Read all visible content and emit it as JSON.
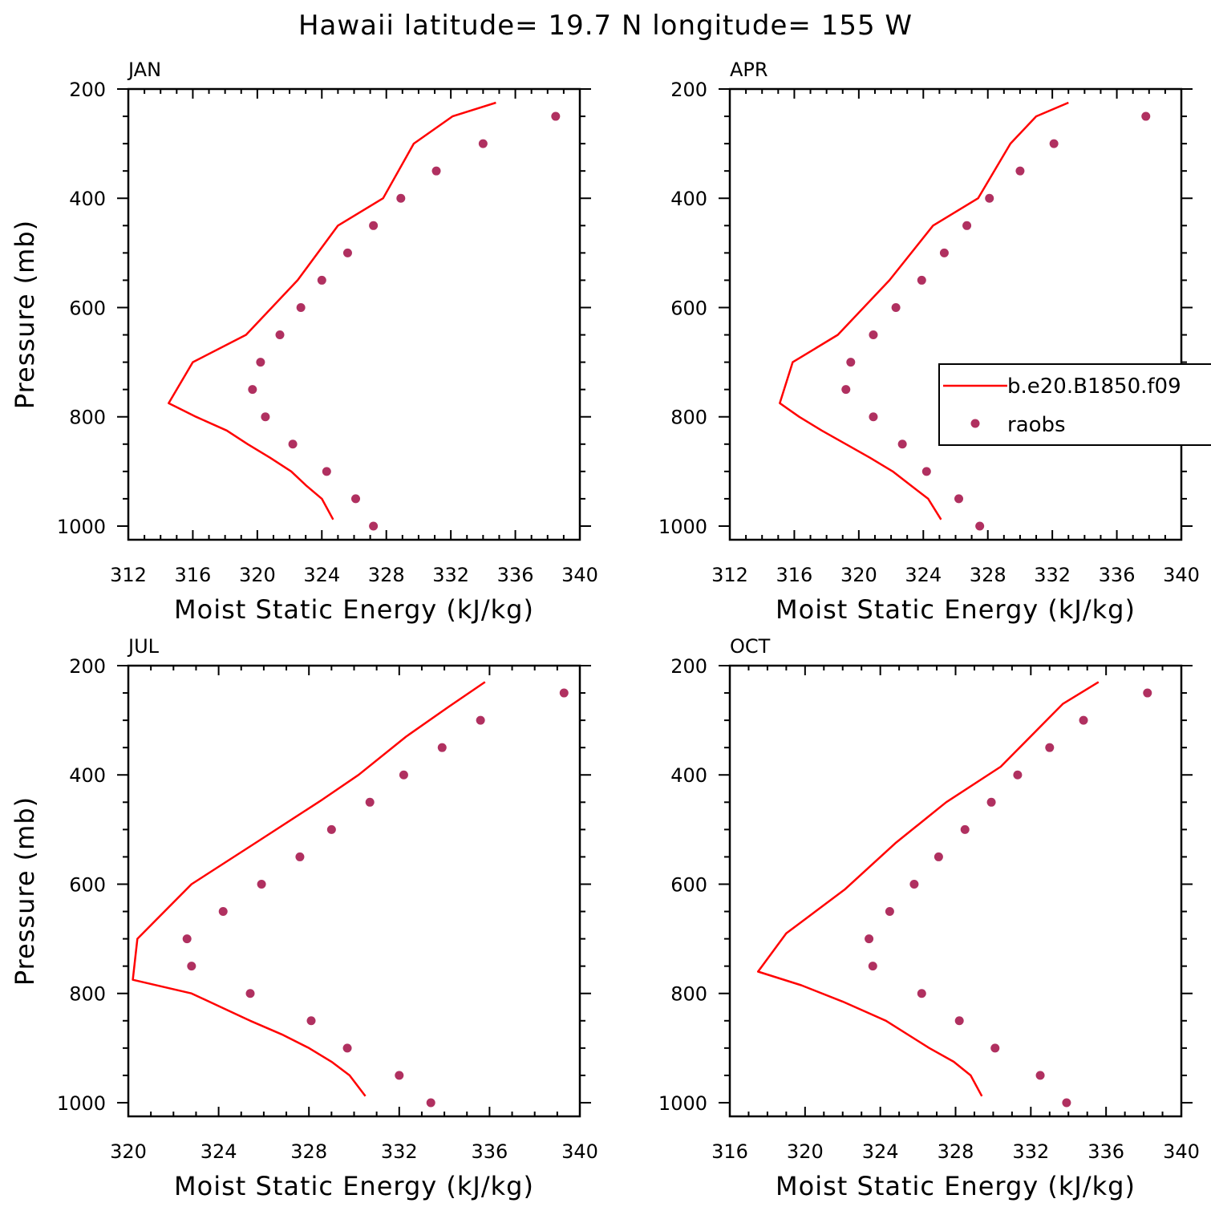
{
  "title": "Hawaii  latitude= 19.7 N longitude= 155 W",
  "colors": {
    "model_line": "#ff0000",
    "raobs_dots": "#b03060"
  },
  "legend": {
    "model_label": "b.e20.B1850.f09",
    "obs_label": "raobs"
  },
  "chart_data": [
    {
      "type": "line",
      "panel_label": "JAN",
      "xlabel": "Moist Static Energy (kJ/kg)",
      "ylabel": "Pressure (mb)",
      "xlim": [
        312,
        340
      ],
      "ylim": [
        1000,
        200
      ],
      "x_ticks": [
        "312",
        "316",
        "320",
        "324",
        "328",
        "332",
        "336",
        "340"
      ],
      "y_ticks": [
        "200",
        "400",
        "600",
        "800",
        "1000"
      ],
      "series": [
        {
          "name": "b.e20.B1850.f09",
          "style": "line",
          "x": [
            324.7,
            324.0,
            323.0,
            322.1,
            320.8,
            319.4,
            318.1,
            316.2,
            314.5,
            316.0,
            319.3,
            322.5,
            325.0,
            327.8,
            329.7,
            332.1,
            334.8
          ],
          "y": [
            988,
            950,
            925,
            900,
            875,
            850,
            825,
            800,
            775,
            700,
            650,
            550,
            450,
            400,
            300,
            250,
            225
          ]
        },
        {
          "name": "raobs",
          "style": "dots",
          "x": [
            327.2,
            326.1,
            324.3,
            322.2,
            320.5,
            319.7,
            320.2,
            321.4,
            322.7,
            324.0,
            325.6,
            327.2,
            328.9,
            331.1,
            334.0,
            338.5
          ],
          "y": [
            1000,
            950,
            900,
            850,
            800,
            750,
            700,
            650,
            600,
            550,
            500,
            450,
            400,
            350,
            300,
            250
          ]
        }
      ]
    },
    {
      "type": "line",
      "panel_label": "APR",
      "xlabel": "Moist Static Energy (kJ/kg)",
      "ylabel": "",
      "xlim": [
        312,
        340
      ],
      "ylim": [
        1000,
        200
      ],
      "x_ticks": [
        "312",
        "316",
        "320",
        "324",
        "328",
        "332",
        "336",
        "340"
      ],
      "y_ticks": [
        "200",
        "400",
        "600",
        "800",
        "1000"
      ],
      "series": [
        {
          "name": "b.e20.B1850.f09",
          "style": "line",
          "x": [
            325.1,
            324.3,
            323.2,
            322.1,
            320.7,
            319.2,
            317.7,
            316.3,
            315.1,
            315.9,
            318.7,
            321.9,
            324.6,
            327.4,
            329.4,
            331.0,
            333.0
          ],
          "y": [
            988,
            950,
            925,
            900,
            875,
            850,
            825,
            800,
            775,
            700,
            650,
            550,
            450,
            400,
            300,
            250,
            225
          ]
        },
        {
          "name": "raobs",
          "style": "dots",
          "x": [
            327.5,
            326.2,
            324.2,
            322.7,
            320.9,
            319.2,
            319.5,
            320.9,
            322.3,
            323.9,
            325.3,
            326.7,
            328.1,
            330.0,
            332.1,
            337.8
          ],
          "y": [
            1000,
            950,
            900,
            850,
            800,
            750,
            700,
            650,
            600,
            550,
            500,
            450,
            400,
            350,
            300,
            250
          ]
        }
      ]
    },
    {
      "type": "line",
      "panel_label": "JUL",
      "xlabel": "Moist Static Energy (kJ/kg)",
      "ylabel": "Pressure (mb)",
      "xlim": [
        320,
        340
      ],
      "ylim": [
        1000,
        200
      ],
      "x_ticks": [
        "320",
        "324",
        "328",
        "332",
        "336",
        "340"
      ],
      "y_ticks": [
        "200",
        "400",
        "600",
        "800",
        "1000"
      ],
      "series": [
        {
          "name": "b.e20.B1850.f09",
          "style": "line",
          "x": [
            330.5,
            329.8,
            329.0,
            328.0,
            326.8,
            325.4,
            324.1,
            322.8,
            320.2,
            320.4,
            322.8,
            325.8,
            328.6,
            330.2,
            332.3,
            334.2,
            335.8
          ],
          "y": [
            988,
            950,
            925,
            900,
            875,
            850,
            825,
            800,
            775,
            700,
            600,
            520,
            445,
            400,
            330,
            275,
            230
          ]
        },
        {
          "name": "raobs",
          "style": "dots",
          "x": [
            333.4,
            332.0,
            329.7,
            328.1,
            325.4,
            322.8,
            322.6,
            324.2,
            325.9,
            327.6,
            329.0,
            330.7,
            332.2,
            333.9,
            335.6,
            339.3
          ],
          "y": [
            1000,
            950,
            900,
            850,
            800,
            750,
            700,
            650,
            600,
            550,
            500,
            450,
            400,
            350,
            300,
            250
          ]
        }
      ]
    },
    {
      "type": "line",
      "panel_label": "OCT",
      "xlabel": "Moist Static Energy (kJ/kg)",
      "ylabel": "",
      "xlim": [
        316,
        340
      ],
      "ylim": [
        1000,
        200
      ],
      "x_ticks": [
        "316",
        "320",
        "324",
        "328",
        "332",
        "336",
        "340"
      ],
      "y_ticks": [
        "200",
        "400",
        "600",
        "800",
        "1000"
      ],
      "series": [
        {
          "name": "b.e20.B1850.f09",
          "style": "line",
          "x": [
            329.4,
            328.8,
            327.9,
            326.6,
            324.3,
            322.0,
            319.8,
            317.5,
            319.0,
            322.1,
            324.8,
            327.5,
            330.4,
            333.7,
            335.6
          ],
          "y": [
            988,
            950,
            925,
            900,
            850,
            815,
            785,
            760,
            690,
            610,
            525,
            450,
            385,
            270,
            230
          ]
        },
        {
          "name": "raobs",
          "style": "dots",
          "x": [
            333.9,
            332.5,
            330.1,
            328.2,
            326.2,
            323.6,
            323.4,
            324.5,
            325.8,
            327.1,
            328.5,
            329.9,
            331.3,
            333.0,
            334.8,
            338.2
          ],
          "y": [
            1000,
            950,
            900,
            850,
            800,
            750,
            700,
            650,
            600,
            550,
            500,
            450,
            400,
            350,
            300,
            250
          ]
        }
      ]
    }
  ]
}
